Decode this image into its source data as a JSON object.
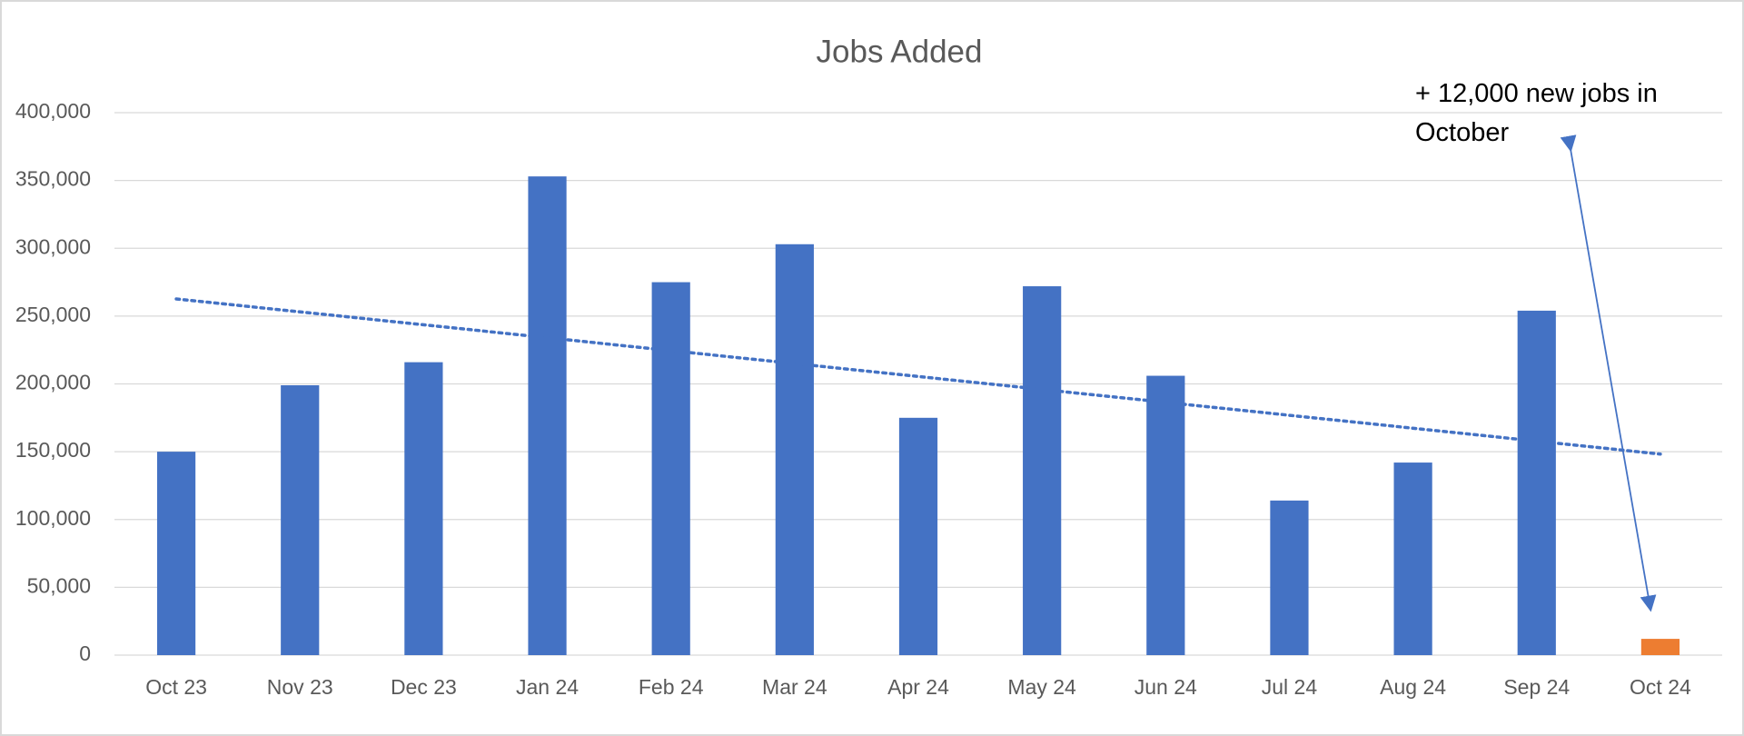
{
  "chart_data": {
    "type": "bar",
    "title": "Jobs Added",
    "categories": [
      "Oct 23",
      "Nov 23",
      "Dec 23",
      "Jan 24",
      "Feb 24",
      "Mar 24",
      "Apr 24",
      "May 24",
      "Jun 24",
      "Jul 24",
      "Aug 24",
      "Sep 24",
      "Oct 24"
    ],
    "values": [
      150000,
      199000,
      216000,
      353000,
      275000,
      303000,
      175000,
      272000,
      206000,
      114000,
      142000,
      254000,
      12000
    ],
    "colors": [
      "#4472c4",
      "#4472c4",
      "#4472c4",
      "#4472c4",
      "#4472c4",
      "#4472c4",
      "#4472c4",
      "#4472c4",
      "#4472c4",
      "#4472c4",
      "#4472c4",
      "#4472c4",
      "#ed7d31"
    ],
    "ylim": [
      0,
      400000
    ],
    "yticks": [
      {
        "value": 0,
        "label": "0"
      },
      {
        "value": 50000,
        "label": "50,000"
      },
      {
        "value": 100000,
        "label": "100,000"
      },
      {
        "value": 150000,
        "label": "150,000"
      },
      {
        "value": 200000,
        "label": "200,000"
      },
      {
        "value": 250000,
        "label": "250,000"
      },
      {
        "value": 300000,
        "label": "300,000"
      },
      {
        "value": 350000,
        "label": "350,000"
      },
      {
        "value": 400000,
        "label": "400,000"
      }
    ],
    "grid": true,
    "trendline": {
      "type": "linear",
      "color": "#4472c4",
      "dashed": true
    },
    "annotation": "+ 12,000 new jobs in October"
  }
}
